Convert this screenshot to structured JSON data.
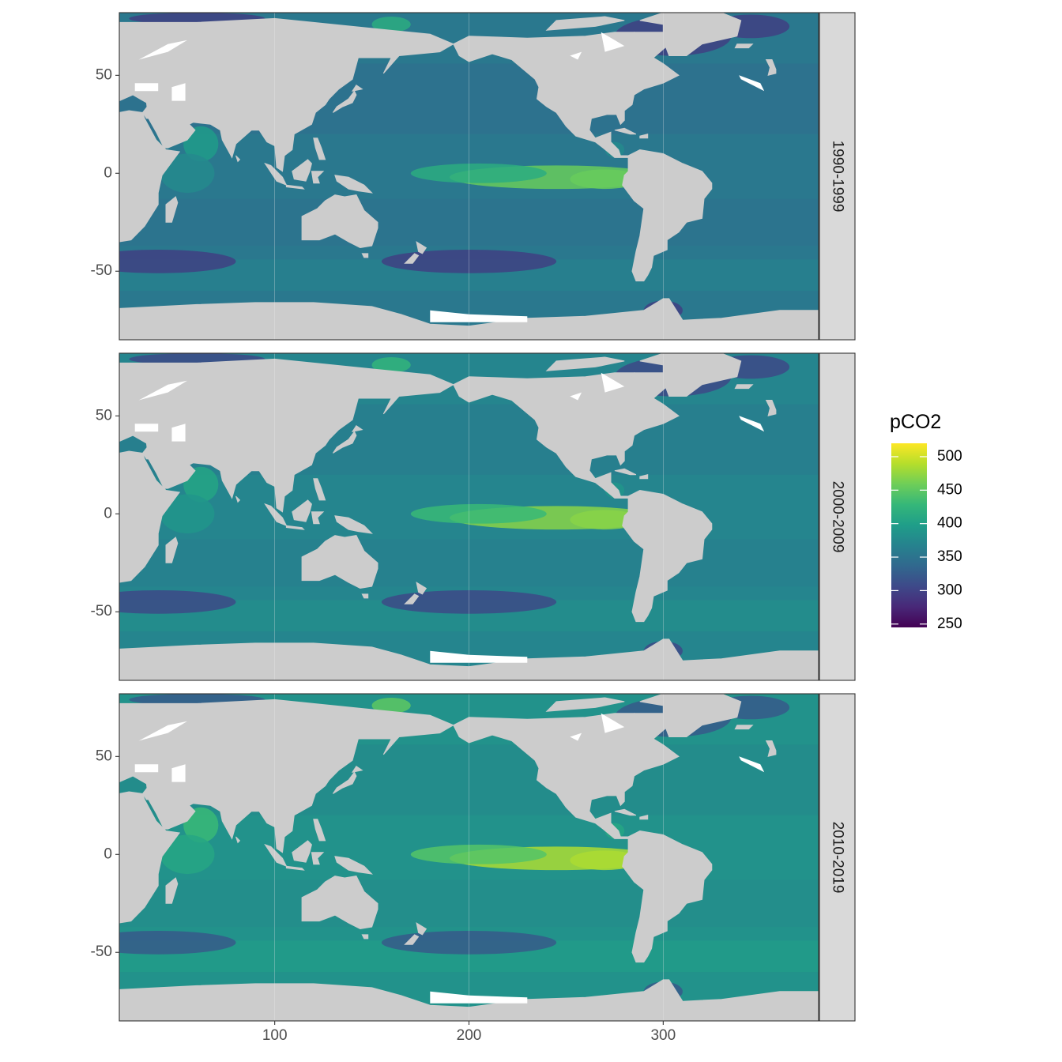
{
  "chart_data": {
    "type": "heatmap",
    "title": "",
    "xlabel": "",
    "ylabel": "",
    "x_ticks": [
      100,
      200,
      300
    ],
    "y_ticks": [
      50,
      0,
      -50
    ],
    "xlim": [
      20,
      380
    ],
    "ylim": [
      -85,
      82
    ],
    "grid": true,
    "facet_var": "decade",
    "panels": [
      {
        "label": "1990-1999",
        "equatorial_pacific_max": 455,
        "arabian_sea": 395,
        "background_open_ocean": 355,
        "north_atlantic_min": 275,
        "southern_ocean": 370
      },
      {
        "label": "2000-2009",
        "equatorial_pacific_max": 470,
        "arabian_sea": 405,
        "background_open_ocean": 370,
        "north_atlantic_min": 285,
        "southern_ocean": 385
      },
      {
        "label": "2010-2019",
        "equatorial_pacific_max": 485,
        "arabian_sea": 430,
        "background_open_ocean": 385,
        "north_atlantic_min": 300,
        "southern_ocean": 400
      }
    ],
    "legend": {
      "title": "pCO2",
      "position": "right",
      "breaks": [
        500,
        450,
        400,
        350,
        300,
        250
      ],
      "limits": [
        245,
        520
      ],
      "palette": "viridis"
    },
    "colors": {
      "land": "#cccccc",
      "strip": "#d9d9d9",
      "missing": "#ffffff",
      "viridis": [
        "#440154",
        "#482878",
        "#3e4989",
        "#31688e",
        "#26828e",
        "#1f9e89",
        "#35b779",
        "#6ece58",
        "#b5de2b",
        "#fde725"
      ]
    }
  }
}
